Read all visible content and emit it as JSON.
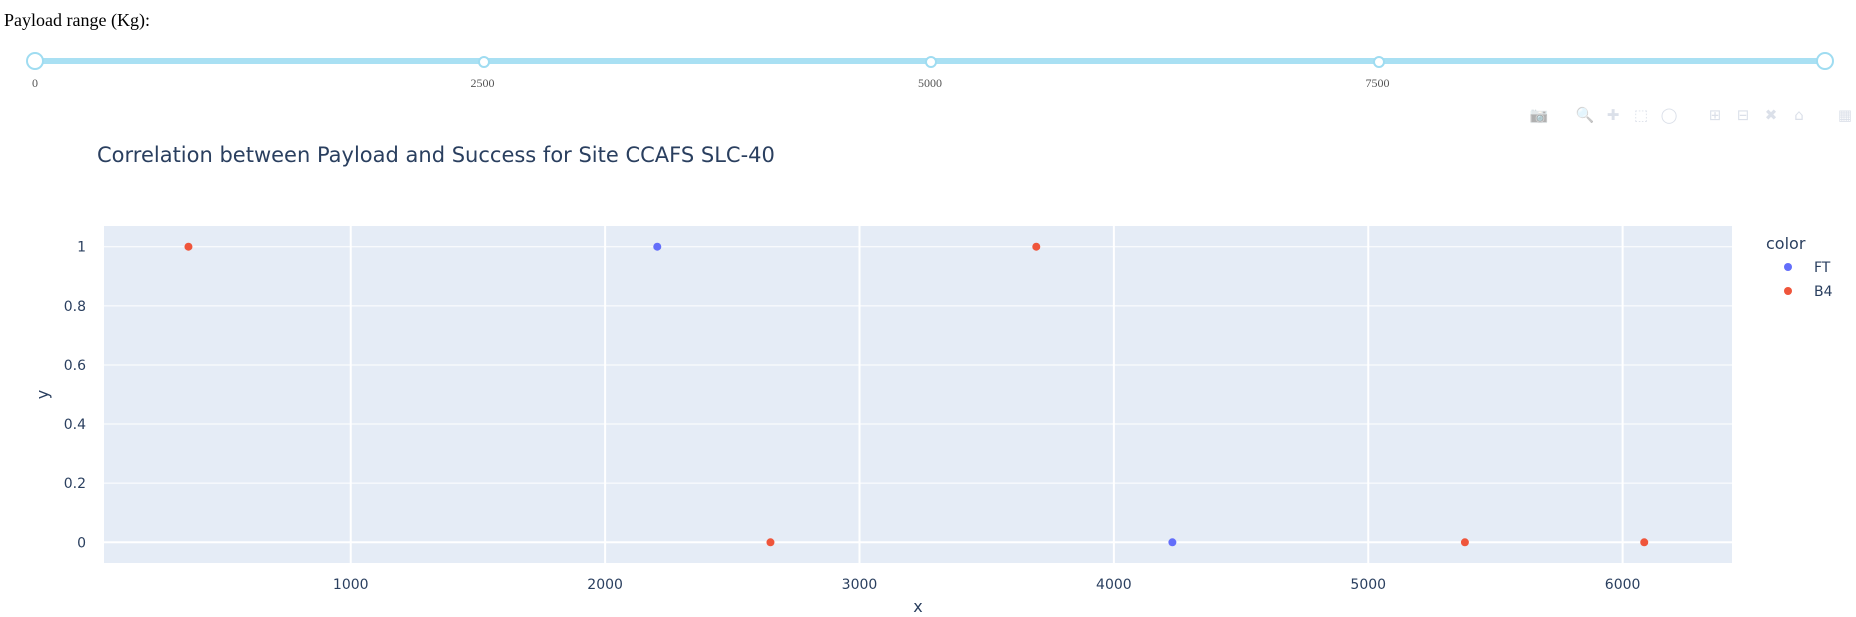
{
  "slider": {
    "label": "Payload range (Kg):",
    "min": 0,
    "max": 10000,
    "value": [
      0,
      10000
    ],
    "marks": [
      {
        "value": 0,
        "label": "0"
      },
      {
        "value": 2500,
        "label": "2500"
      },
      {
        "value": 5000,
        "label": "5000"
      },
      {
        "value": 7500,
        "label": "7500"
      }
    ]
  },
  "modebar": {
    "icons": [
      "camera-icon",
      "zoom-icon",
      "pan-icon",
      "box-select-icon",
      "lasso-icon",
      "zoom-in-icon",
      "zoom-out-icon",
      "autoscale-icon",
      "reset-axes-icon",
      "plotly-logo-icon"
    ]
  },
  "chart_data": {
    "type": "scatter",
    "title": "Correlation between Payload and Success for Site CCAFS SLC-40",
    "xlabel": "x",
    "ylabel": "y",
    "xlim": [
      30,
      6430
    ],
    "ylim": [
      -0.07,
      1.07
    ],
    "xticks": [
      1000,
      2000,
      3000,
      4000,
      5000,
      6000
    ],
    "yticks": [
      0,
      0.2,
      0.4,
      0.6,
      0.8,
      1
    ],
    "grid": true,
    "legend_title": "color",
    "legend_position": "right",
    "series": [
      {
        "name": "FT",
        "color": "#636efa",
        "points": [
          {
            "x": 2205,
            "y": 1
          },
          {
            "x": 4230,
            "y": 0
          }
        ]
      },
      {
        "name": "B4",
        "color": "#ef553b",
        "points": [
          {
            "x": 362,
            "y": 1
          },
          {
            "x": 2650,
            "y": 0
          },
          {
            "x": 3695,
            "y": 1
          },
          {
            "x": 5380,
            "y": 0
          },
          {
            "x": 6085,
            "y": 0
          }
        ]
      }
    ],
    "plot_background": "#e5ecf6"
  }
}
